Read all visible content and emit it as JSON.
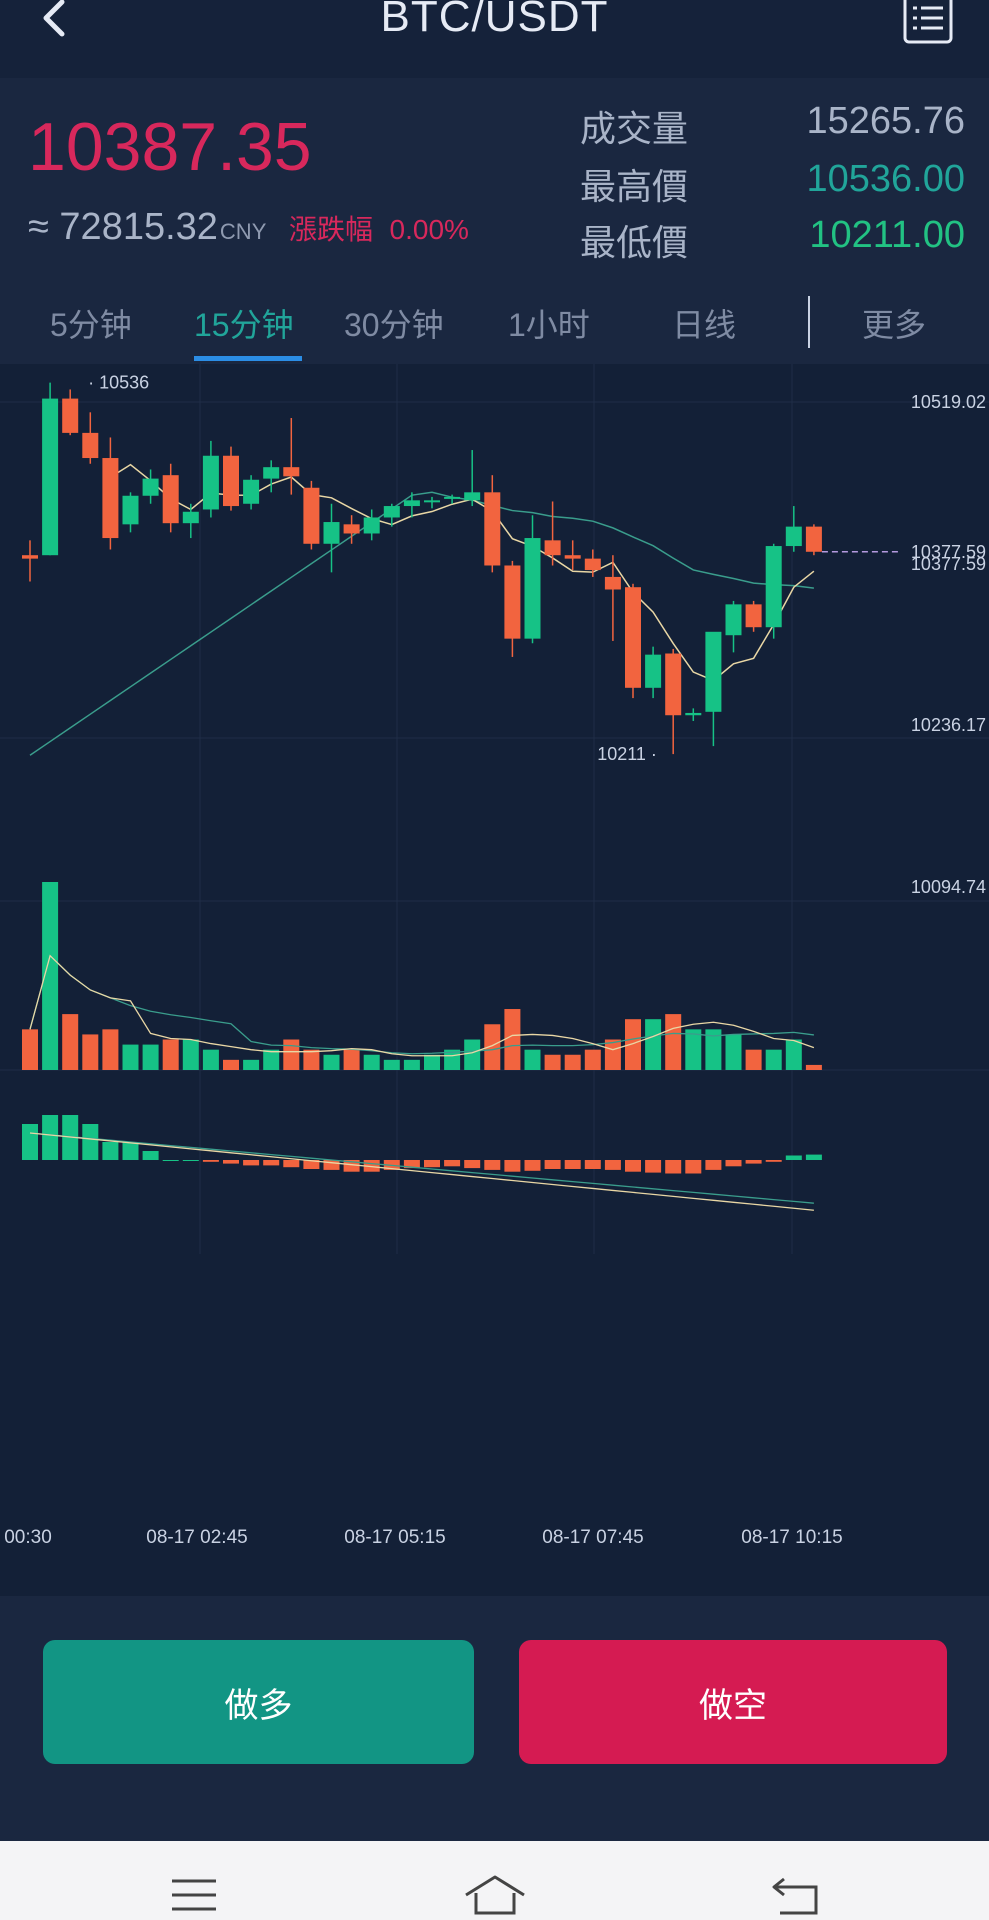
{
  "header": {
    "title": "BTC/USDT",
    "back_icon": "chevron-left-icon",
    "menu_icon": "order-list-icon"
  },
  "ticker": {
    "last_price": "10387.35",
    "approx_symbol": "≈",
    "approx_cny": "72815.32",
    "cny_label": "CNY",
    "change_label": "漲跌幅",
    "change_value": "0.00%",
    "stats": [
      {
        "label": "成交量",
        "value": "15265.76",
        "color": "#a9b4c8"
      },
      {
        "label": "最高價",
        "value": "10536.00",
        "color": "#21a59a"
      },
      {
        "label": "最低價",
        "value": "10211.00",
        "color": "#22c283"
      }
    ]
  },
  "intervals": {
    "tabs": [
      "5分钟",
      "15分钟",
      "30分钟",
      "1小时",
      "日线"
    ],
    "active": 1,
    "more_label": "更多"
  },
  "chart_data": {
    "type": "candlestick",
    "price_axis_labels": [
      "10519.02",
      "10377.59",
      "10236.17",
      "10094.74"
    ],
    "current_price_label": "10377.59",
    "high_marker": "10536",
    "low_marker": "10211",
    "time_labels": [
      "00:30",
      "08-17 02:45",
      "08-17 05:15",
      "08-17 07:45",
      "08-17 10:15"
    ],
    "colors": {
      "up": "#16c286",
      "down": "#f2643f",
      "ma_fast": "#e9d7a5",
      "ma_slow": "#3a9d8c"
    },
    "ylim": [
      10094.74,
      10560
    ],
    "candles": [
      {
        "o": 10385,
        "h": 10398,
        "l": 10362,
        "c": 10382
      },
      {
        "o": 10385,
        "h": 10536,
        "l": 10385,
        "c": 10522
      },
      {
        "o": 10522,
        "h": 10530,
        "l": 10490,
        "c": 10492
      },
      {
        "o": 10492,
        "h": 10510,
        "l": 10465,
        "c": 10470
      },
      {
        "o": 10470,
        "h": 10488,
        "l": 10390,
        "c": 10400
      },
      {
        "o": 10412,
        "h": 10440,
        "l": 10405,
        "c": 10437
      },
      {
        "o": 10437,
        "h": 10460,
        "l": 10430,
        "c": 10452
      },
      {
        "o": 10455,
        "h": 10465,
        "l": 10405,
        "c": 10413
      },
      {
        "o": 10413,
        "h": 10430,
        "l": 10400,
        "c": 10423
      },
      {
        "o": 10425,
        "h": 10485,
        "l": 10418,
        "c": 10472
      },
      {
        "o": 10472,
        "h": 10480,
        "l": 10424,
        "c": 10428
      },
      {
        "o": 10430,
        "h": 10455,
        "l": 10425,
        "c": 10451
      },
      {
        "o": 10452,
        "h": 10468,
        "l": 10440,
        "c": 10462
      },
      {
        "o": 10462,
        "h": 10505,
        "l": 10438,
        "c": 10454
      },
      {
        "o": 10444,
        "h": 10450,
        "l": 10390,
        "c": 10395
      },
      {
        "o": 10395,
        "h": 10430,
        "l": 10370,
        "c": 10414
      },
      {
        "o": 10412,
        "h": 10420,
        "l": 10395,
        "c": 10404
      },
      {
        "o": 10404,
        "h": 10425,
        "l": 10398,
        "c": 10418
      },
      {
        "o": 10418,
        "h": 10430,
        "l": 10410,
        "c": 10428
      },
      {
        "o": 10428,
        "h": 10440,
        "l": 10418,
        "c": 10433
      },
      {
        "o": 10433,
        "h": 10436,
        "l": 10426,
        "c": 10433
      },
      {
        "o": 10435,
        "h": 10438,
        "l": 10430,
        "c": 10436
      },
      {
        "o": 10433,
        "h": 10477,
        "l": 10428,
        "c": 10440
      },
      {
        "o": 10440,
        "h": 10455,
        "l": 10370,
        "c": 10376
      },
      {
        "o": 10376,
        "h": 10380,
        "l": 10296,
        "c": 10312
      },
      {
        "o": 10312,
        "h": 10420,
        "l": 10308,
        "c": 10400
      },
      {
        "o": 10398,
        "h": 10432,
        "l": 10376,
        "c": 10385
      },
      {
        "o": 10385,
        "h": 10398,
        "l": 10372,
        "c": 10382
      },
      {
        "o": 10382,
        "h": 10390,
        "l": 10366,
        "c": 10372
      },
      {
        "o": 10366,
        "h": 10385,
        "l": 10310,
        "c": 10355
      },
      {
        "o": 10357,
        "h": 10360,
        "l": 10260,
        "c": 10269
      },
      {
        "o": 10269,
        "h": 10305,
        "l": 10260,
        "c": 10298
      },
      {
        "o": 10299,
        "h": 10303,
        "l": 10211,
        "c": 10245
      },
      {
        "o": 10245,
        "h": 10251,
        "l": 10240,
        "c": 10247
      },
      {
        "o": 10248,
        "h": 10315,
        "l": 10218,
        "c": 10318
      },
      {
        "o": 10315,
        "h": 10345,
        "l": 10300,
        "c": 10342
      },
      {
        "o": 10342,
        "h": 10345,
        "l": 10318,
        "c": 10322
      },
      {
        "o": 10322,
        "h": 10395,
        "l": 10312,
        "c": 10393
      },
      {
        "o": 10393,
        "h": 10428,
        "l": 10388,
        "c": 10410
      },
      {
        "o": 10410,
        "h": 10412,
        "l": 10385,
        "c": 10388
      }
    ],
    "volume": [
      8,
      37,
      11,
      7,
      8,
      5,
      5,
      6,
      6,
      4,
      2,
      2,
      4,
      6,
      4,
      3,
      4,
      3,
      2,
      2,
      3,
      4,
      6,
      9,
      12,
      4,
      3,
      3,
      4,
      6,
      10,
      10,
      11,
      8,
      8,
      7,
      4,
      4,
      6,
      1
    ],
    "macd": [
      4,
      5,
      5,
      4,
      2,
      2,
      1,
      0,
      0,
      -0.2,
      -0.4,
      -0.6,
      -0.6,
      -0.8,
      -1.0,
      -1.1,
      -1.3,
      -1.3,
      -1.1,
      -0.9,
      -0.8,
      -0.7,
      -0.9,
      -1.1,
      -1.3,
      -1.2,
      -1.0,
      -1.0,
      -1.0,
      -1.1,
      -1.3,
      -1.4,
      -1.5,
      -1.5,
      -1.1,
      -0.7,
      -0.4,
      -0.2,
      0.5,
      0.6
    ]
  },
  "actions": {
    "long_label": "做多",
    "short_label": "做空"
  },
  "system_nav": {
    "menu_icon": "menu-icon",
    "home_icon": "home-icon",
    "back_icon": "back-icon"
  }
}
